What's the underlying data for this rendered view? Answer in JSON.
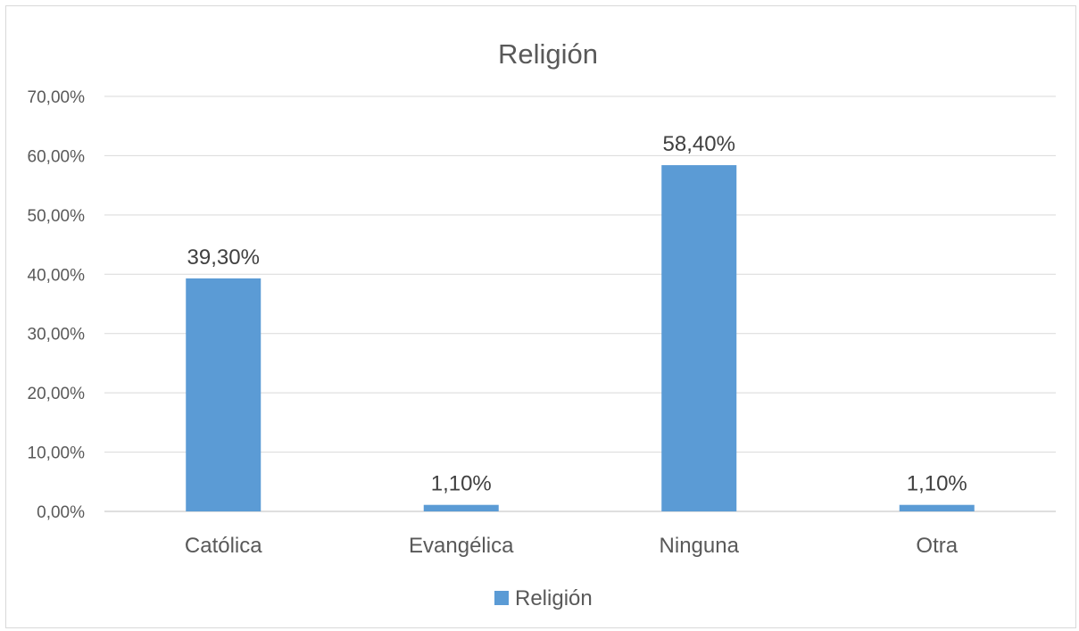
{
  "chart_data": {
    "type": "bar",
    "title": "Religión",
    "categories": [
      "Católica",
      "Evangélica",
      "Ninguna",
      "Otra"
    ],
    "series": [
      {
        "name": "Religión",
        "values": [
          39.3,
          1.1,
          58.4,
          1.1
        ],
        "labels": [
          "39,30%",
          "1,10%",
          "58,40%",
          "1,10%"
        ],
        "color": "#5b9bd5"
      }
    ],
    "yticks": [
      0,
      10,
      20,
      30,
      40,
      50,
      60,
      70
    ],
    "ytick_labels": [
      "0,00%",
      "10,00%",
      "20,00%",
      "30,00%",
      "40,00%",
      "50,00%",
      "60,00%",
      "70,00%"
    ],
    "ylim": [
      0,
      70
    ],
    "grid": true,
    "legend_position": "bottom",
    "xlabel": "",
    "ylabel": ""
  }
}
